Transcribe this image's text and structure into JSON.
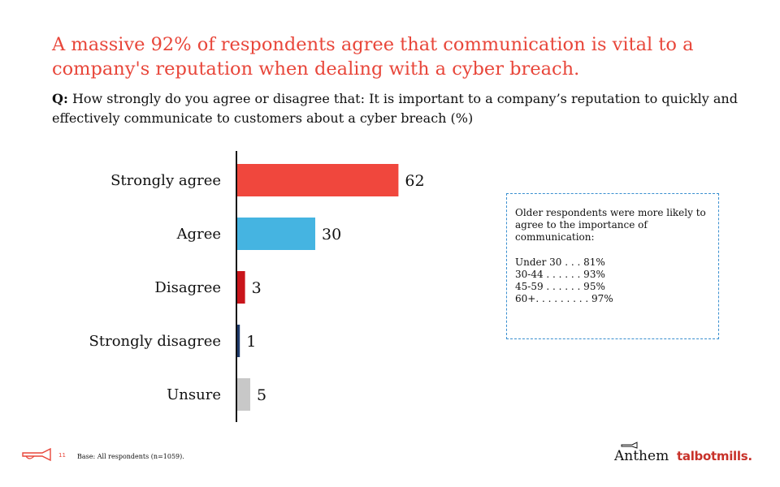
{
  "headline": "A massive 92% of respondents agree that communication is vital to a company's reputation when dealing with a cyber breach.",
  "question": {
    "prefix": "Q:",
    "text": "How strongly do you agree or disagree that: It is important to a company’s reputation to quickly and effectively communicate to customers about a cyber breach (%)"
  },
  "chart_data": {
    "type": "bar",
    "orientation": "horizontal",
    "categories": [
      "Strongly agree",
      "Agree",
      "Disagree",
      "Strongly disagree",
      "Unsure"
    ],
    "values": [
      62,
      30,
      3,
      1,
      5
    ],
    "colors": [
      "#f0473d",
      "#45b4e1",
      "#c9151b",
      "#1f3b6b",
      "#c8c8c8"
    ],
    "grid": false,
    "data_labels": true
  },
  "note": {
    "intro": "Older respondents were more likely to agree to the importance of communication:",
    "rows": [
      "Under 30 . . . 81%",
      "30-44 . . . . . . 93%",
      "45-59 . . . . . . 95%",
      "60+. . . . . . . . . 97%"
    ],
    "border_color": "#3a8fd0"
  },
  "footer": {
    "page_number": "11",
    "base": "Base: All respondents (n=1059).",
    "brand_anthem": "Anthem",
    "brand_talbot": "talbot",
    "brand_mills": "mills."
  },
  "icons": {
    "footer_icon": "trumpet-icon",
    "anthem_icon": "trumpet-icon"
  }
}
